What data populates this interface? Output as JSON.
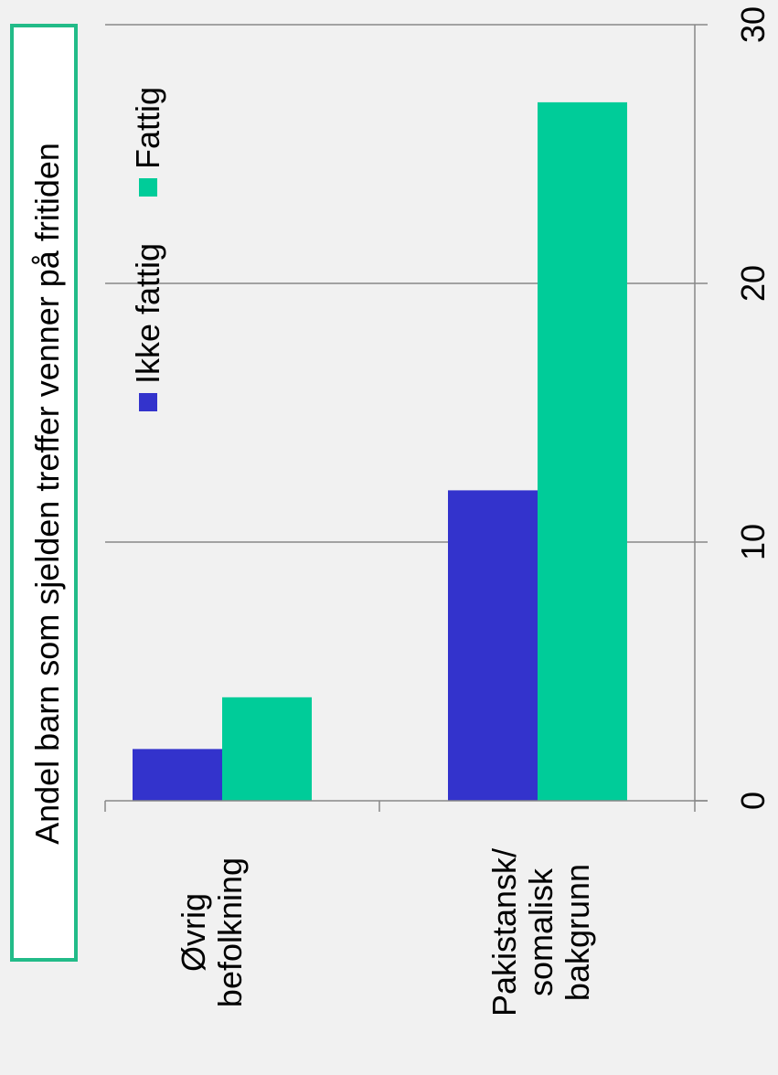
{
  "chart_data": {
    "type": "bar",
    "title": "Andel barn som sjelden treffer venner på fritiden",
    "categories": [
      "Øvrig befolkning",
      "Pakistansk/ somalisk bakgrunn"
    ],
    "category_lines": [
      [
        "Øvrig",
        "befolkning"
      ],
      [
        "Pakistansk/",
        "somalisk",
        "bakgrunn"
      ]
    ],
    "series": [
      {
        "name": "Ikke fattig",
        "values": [
          2,
          12
        ],
        "color": "#3333cc"
      },
      {
        "name": "Fattig",
        "values": [
          4,
          27
        ],
        "color": "#00cc99"
      }
    ],
    "ylim": [
      0,
      30
    ],
    "ticks": [
      0,
      10,
      20,
      30
    ],
    "grid": true,
    "legend_placement": "top",
    "title_box_color": "#22bb88",
    "rotated": "90deg clockwise"
  }
}
